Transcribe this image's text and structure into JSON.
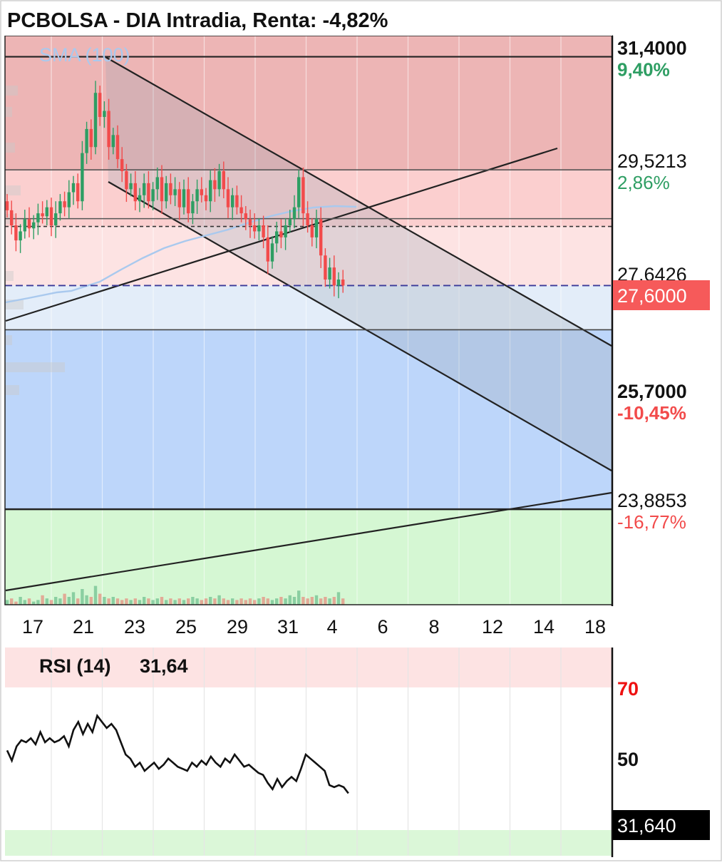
{
  "title": "PCBOLSA - DIA Intradia, Renta: -4,82%",
  "sma_label": "SMA (100)",
  "price_levels": [
    {
      "value": 31.4,
      "label": "31,4000",
      "pct": "9,40%",
      "pct_color": "#2e9e63",
      "bold": true
    },
    {
      "value": 29.5213,
      "label": "29,5213",
      "pct": "2,86%",
      "pct_color": "#2e9e63",
      "bold": false
    },
    {
      "value": 27.6426,
      "label": "27,6426",
      "pct": "",
      "pct_color": "#2e9e63",
      "bold": false
    },
    {
      "value": 25.7,
      "label": "25,7000",
      "pct": "-10,45%",
      "pct_color": "#f24b4b",
      "bold": true
    },
    {
      "value": 23.8853,
      "label": "23,8853",
      "pct": "-16,77%",
      "pct_color": "#f24b4b",
      "bold": false
    }
  ],
  "current_price": {
    "value": 27.6,
    "label": "27,6000",
    "color": "#f65a5a"
  },
  "x_ticks": [
    "17",
    "21",
    "23",
    "25",
    "29",
    "31",
    "4",
    "6",
    "8",
    "12",
    "14",
    "18"
  ],
  "rsi": {
    "title": "RSI (14)",
    "value_text": "31,64",
    "box_label": "31,640",
    "levels": [
      "70",
      "50"
    ],
    "level_colors": [
      "#ee1111",
      "#111111"
    ]
  },
  "colors": {
    "up": "#2e9e63",
    "down": "#f24b4b",
    "zone_red_dark": "#edb5b5",
    "zone_red_mid": "#fbcfcf",
    "zone_red_light": "#fde3e3",
    "zone_blue_light": "#e3edf9",
    "zone_blue": "#bdd6fa",
    "zone_green": "#d5f7d3",
    "sma": "#a9c9ee",
    "channel_fill": "#9aa6b3"
  },
  "chart_data": [
    {
      "type": "candlestick",
      "title": "PCBOLSA - DIA Intradia, Renta: -4,82%",
      "x_axis": [
        "17",
        "21",
        "23",
        "25",
        "29",
        "31",
        "4",
        "6",
        "8",
        "12",
        "14",
        "18"
      ],
      "ylim": [
        22.3,
        31.75
      ],
      "last": 27.6,
      "close": [
        28.85,
        28.6,
        28.35,
        28.5,
        28.7,
        28.55,
        28.65,
        28.8,
        28.75,
        28.9,
        28.6,
        28.8,
        29.0,
        28.9,
        29.15,
        29.3,
        29.0,
        29.8,
        30.2,
        29.9,
        30.8,
        30.4,
        30.5,
        29.9,
        30.1,
        29.7,
        29.5,
        29.2,
        29.3,
        29.0,
        29.1,
        29.3,
        29.0,
        29.2,
        29.4,
        29.0,
        29.3,
        29.1,
        29.2,
        28.9,
        29.2,
        28.8,
        29.0,
        29.2,
        29.1,
        29.0,
        29.35,
        29.2,
        29.5,
        29.2,
        28.9,
        29.1,
        28.9,
        28.8,
        28.7,
        28.6,
        28.5,
        28.6,
        28.4,
        28.0,
        28.3,
        28.5,
        28.4,
        28.6,
        28.7,
        28.9,
        29.4,
        28.8,
        28.6,
        28.4,
        28.7,
        28.1,
        27.7,
        27.9,
        27.6,
        27.7,
        27.6
      ],
      "volume": [
        3,
        4,
        2,
        5,
        3,
        4,
        2,
        3,
        6,
        4,
        3,
        5,
        4,
        7,
        5,
        8,
        4,
        10,
        6,
        5,
        12,
        7,
        5,
        4,
        5,
        4,
        3,
        4,
        3,
        4,
        3,
        5,
        4,
        3,
        4,
        5,
        3,
        4,
        3,
        4,
        3,
        4,
        5,
        4,
        3,
        4,
        5,
        4,
        6,
        4,
        3,
        4,
        3,
        4,
        3,
        4,
        3,
        4,
        5,
        4,
        3,
        4,
        5,
        4,
        6,
        5,
        9,
        5,
        4,
        5,
        6,
        4,
        5,
        4,
        5,
        8,
        4
      ]
    },
    {
      "type": "line",
      "title": "RSI (14)",
      "ylim": [
        0,
        100
      ],
      "levels": [
        70,
        50
      ],
      "last": 31.64,
      "values": [
        53,
        48,
        55,
        58,
        57,
        59,
        56,
        62,
        57,
        59,
        57,
        58,
        60,
        55,
        63,
        67,
        61,
        66,
        62,
        70,
        67,
        64,
        66,
        63,
        57,
        51,
        49,
        45,
        47,
        43,
        45,
        47,
        44,
        46,
        49,
        47,
        45,
        44,
        43,
        47,
        45,
        48,
        46,
        50,
        47,
        45,
        49,
        47,
        51,
        48,
        45,
        46,
        44,
        42,
        41,
        37,
        34,
        39,
        35,
        38,
        40,
        38,
        44,
        51,
        49,
        47,
        45,
        43,
        36,
        35,
        36,
        35,
        32
      ]
    }
  ]
}
